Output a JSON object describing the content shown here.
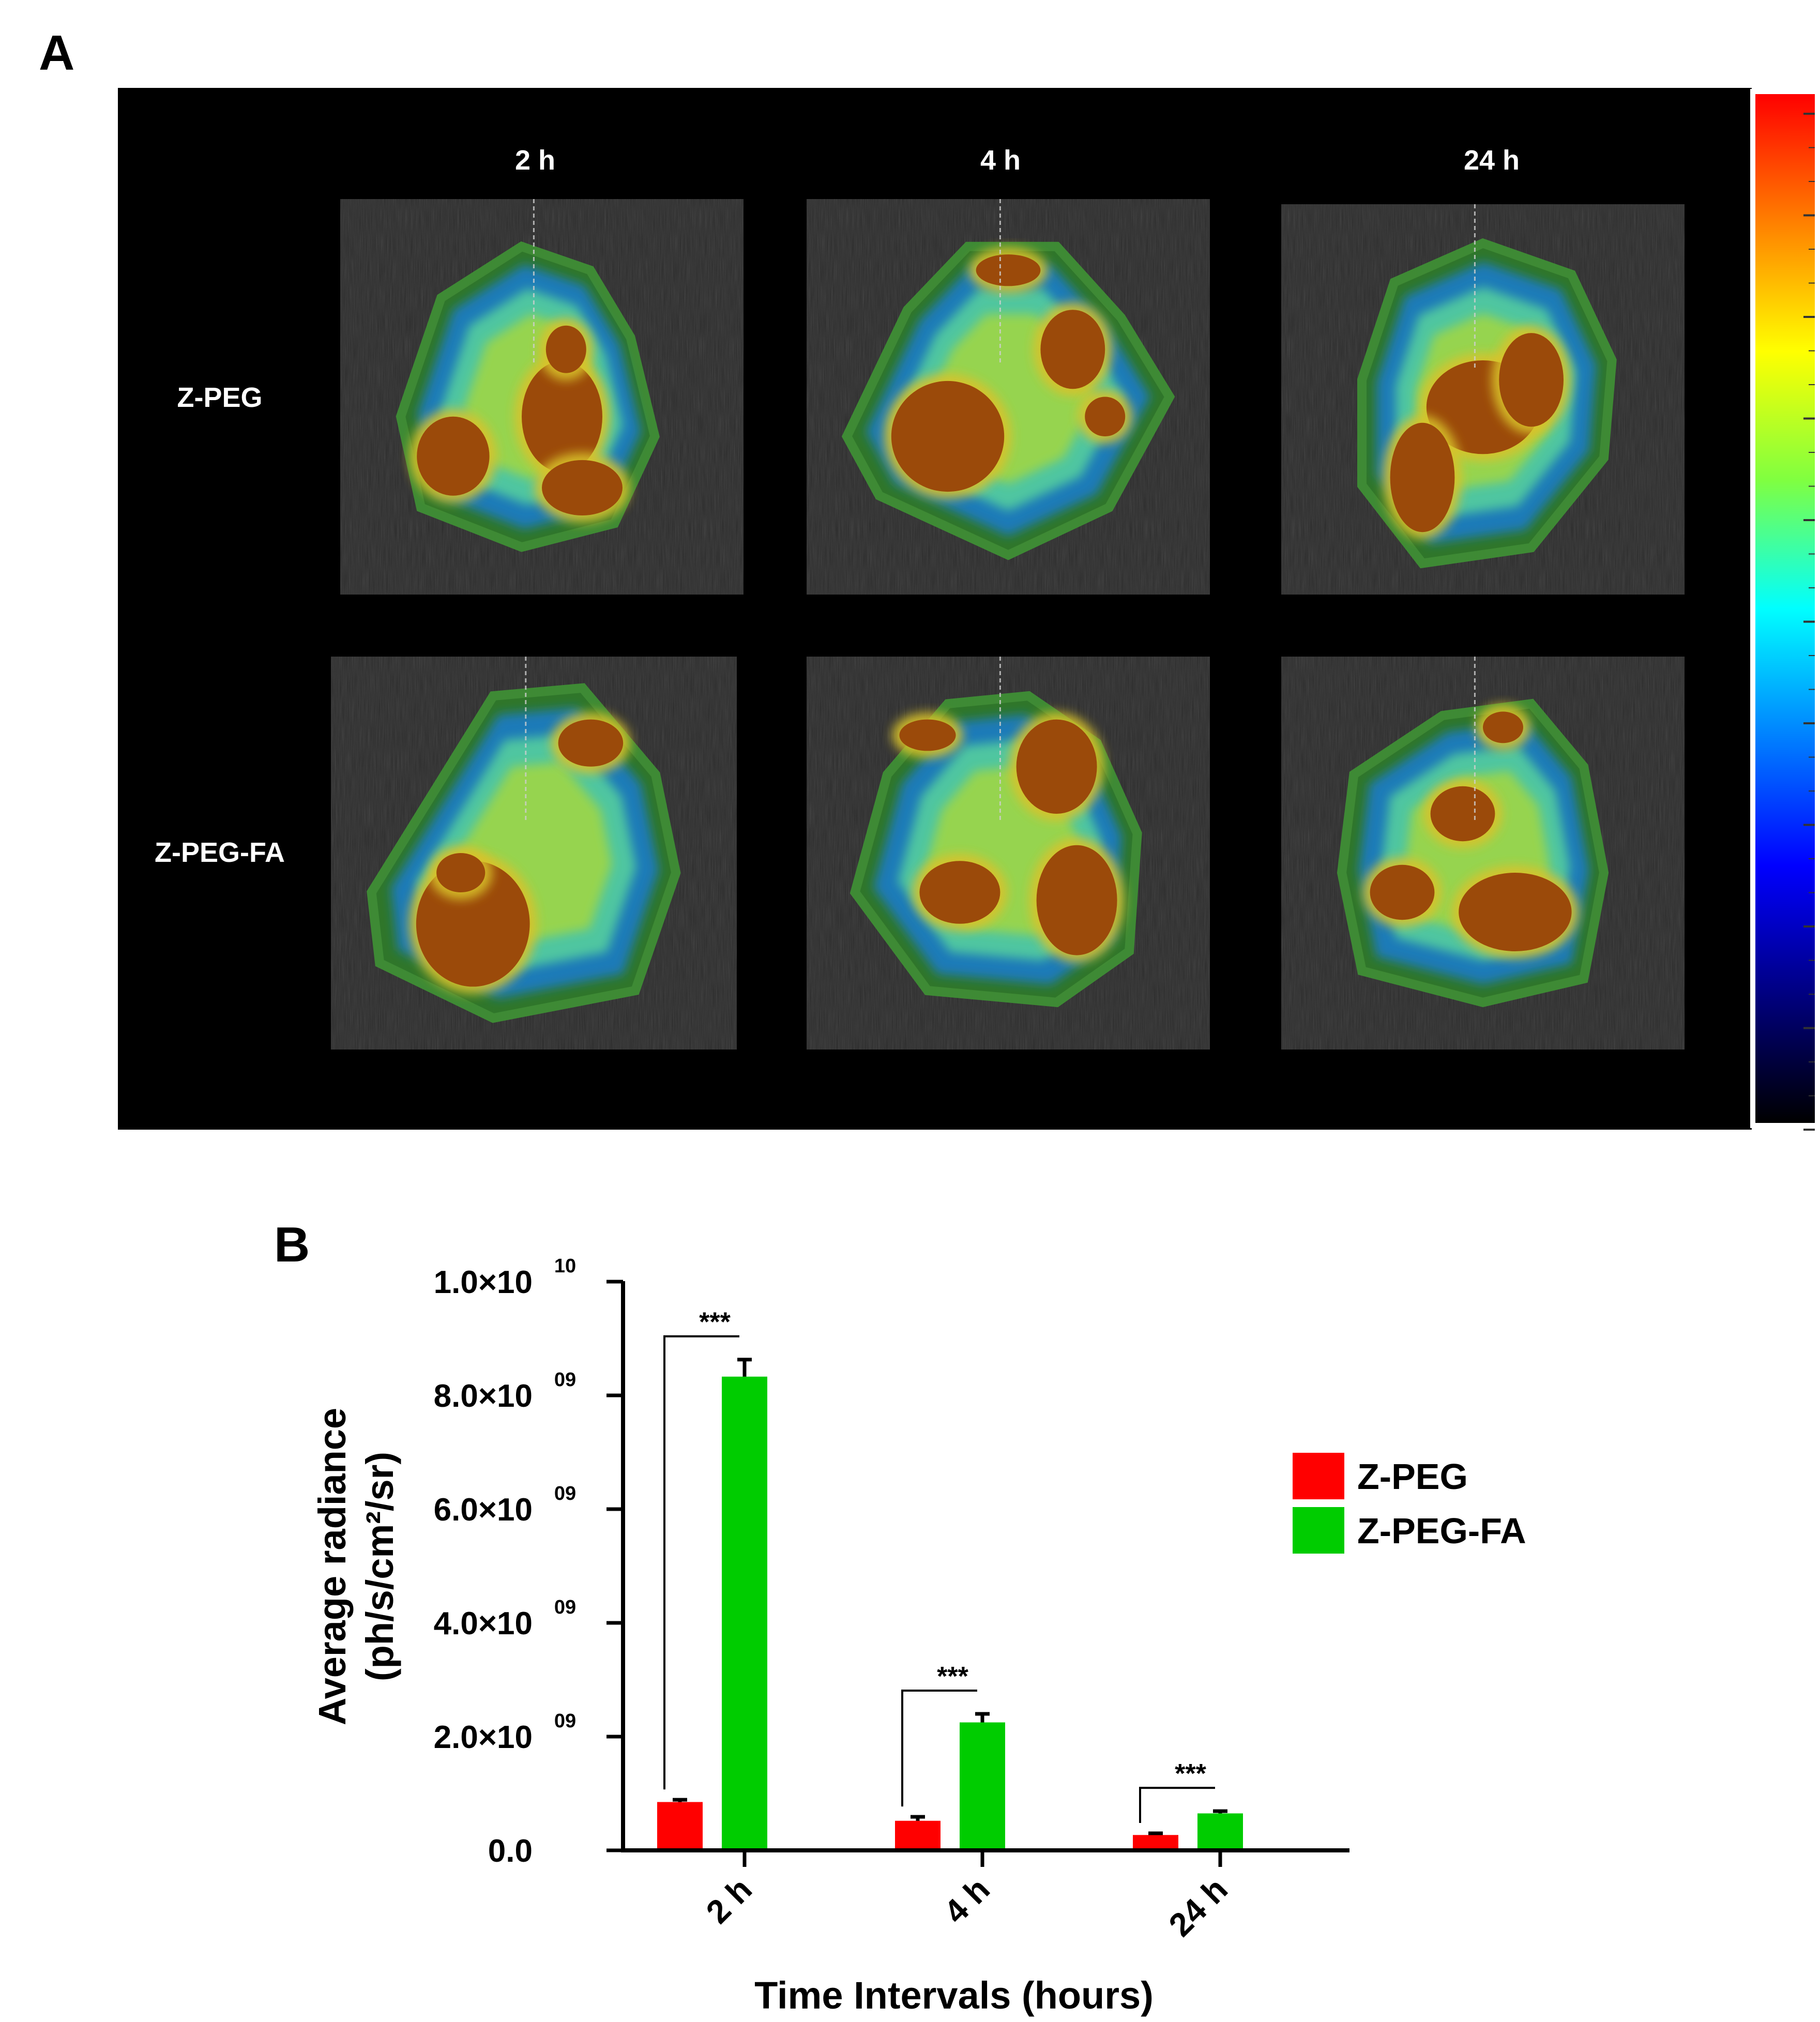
{
  "panel_a": {
    "label": "A",
    "columns": [
      "2 h",
      "4 h",
      "24 h"
    ],
    "rows": [
      "Z-PEG",
      "Z-PEG-FA"
    ],
    "colorbar": [
      "#ff0000",
      "#ff8000",
      "#ffff00",
      "#80ff40",
      "#00ffff",
      "#0080ff",
      "#0000ff",
      "#000080",
      "#000000"
    ]
  },
  "panel_b": {
    "label": "B",
    "significance": [
      "***",
      "***",
      "***"
    ]
  },
  "chart_data": {
    "type": "bar",
    "categories": [
      "2 h",
      "4 h",
      "24 h"
    ],
    "series": [
      {
        "name": "Z-PEG",
        "values": [
          850000000,
          520000000,
          270000000
        ],
        "errors": [
          40000000,
          70000000,
          30000000
        ],
        "color": "#ff0000"
      },
      {
        "name": "Z-PEG-FA",
        "values": [
          8330000000,
          2250000000,
          650000000
        ],
        "errors": [
          300000000,
          150000000,
          40000000
        ],
        "color": "#00cc00"
      }
    ],
    "xlabel": "Time Intervals (hours)",
    "ylabel_line1": "Average radiance",
    "ylabel_line2": "(ph/s/cm²/sr)",
    "ylim": [
      0,
      10000000000
    ],
    "yticks": [
      {
        "value": 0,
        "mantissa": "0.0",
        "exponent": ""
      },
      {
        "value": 2000000000,
        "mantissa": "2.0×10",
        "exponent": "09"
      },
      {
        "value": 4000000000,
        "mantissa": "4.0×10",
        "exponent": "09"
      },
      {
        "value": 6000000000,
        "mantissa": "6.0×10",
        "exponent": "09"
      },
      {
        "value": 8000000000,
        "mantissa": "8.0×10",
        "exponent": "09"
      },
      {
        "value": 10000000000,
        "mantissa": "1.0×10",
        "exponent": "10"
      }
    ],
    "legend_position": "right"
  }
}
